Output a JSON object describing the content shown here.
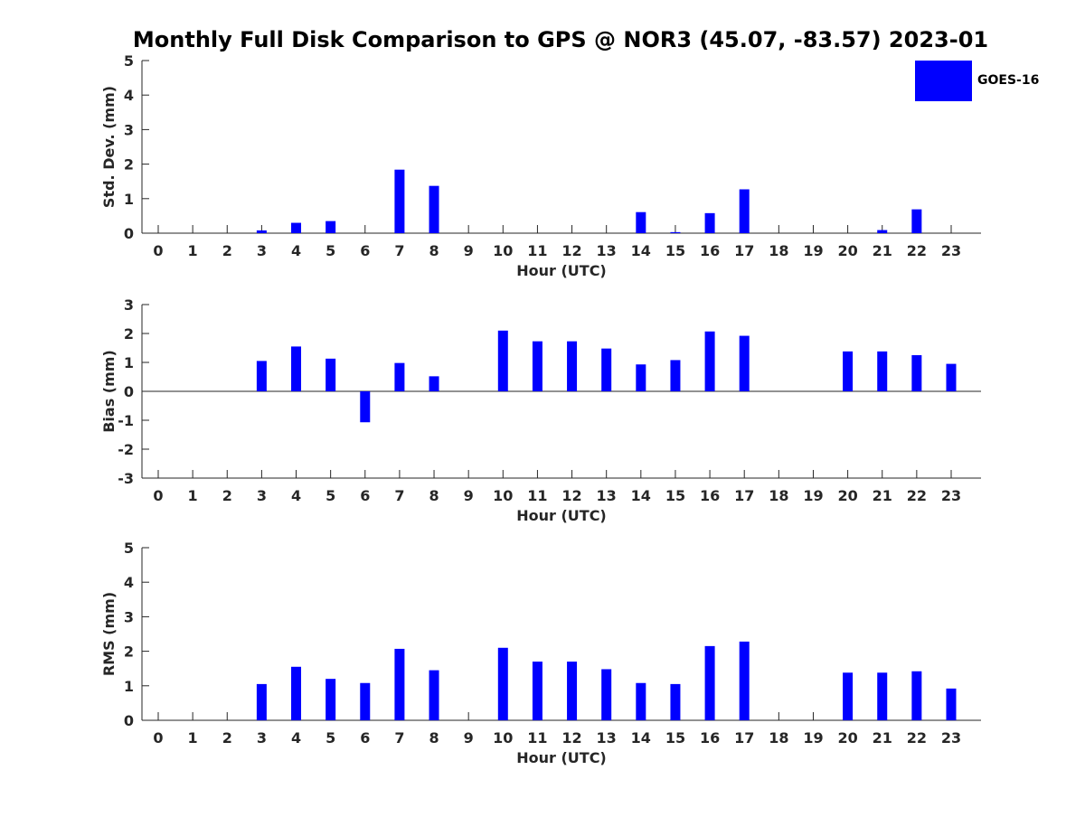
{
  "figure": {
    "title": "Monthly Full Disk Comparison to GPS @ NOR3 (45.07, -83.57) 2023-01",
    "bar_color": "#0000ff",
    "legend": {
      "label": "GOES-16",
      "placement": "top-right"
    }
  },
  "chart_data": [
    {
      "type": "bar",
      "title": "",
      "xlabel": "Hour (UTC)",
      "ylabel": "Std. Dev. (mm)",
      "ylim": [
        0,
        5
      ],
      "yticks": [
        0,
        1,
        2,
        3,
        4,
        5
      ],
      "categories": [
        "0",
        "1",
        "2",
        "3",
        "4",
        "5",
        "6",
        "7",
        "8",
        "9",
        "10",
        "11",
        "12",
        "13",
        "14",
        "15",
        "16",
        "17",
        "18",
        "19",
        "20",
        "21",
        "22",
        "23"
      ],
      "series": [
        {
          "name": "GOES-16",
          "values": [
            null,
            null,
            null,
            0.08,
            0.3,
            0.35,
            null,
            1.84,
            1.37,
            null,
            null,
            null,
            null,
            null,
            0.61,
            0.03,
            0.58,
            1.27,
            null,
            null,
            null,
            0.09,
            0.69,
            null
          ]
        }
      ],
      "grid": false
    },
    {
      "type": "bar",
      "title": "",
      "xlabel": "Hour (UTC)",
      "ylabel": "Bias (mm)",
      "ylim": [
        -3,
        3
      ],
      "yticks": [
        -3,
        -2,
        -1,
        0,
        1,
        2,
        3
      ],
      "zero_line": true,
      "categories": [
        "0",
        "1",
        "2",
        "3",
        "4",
        "5",
        "6",
        "7",
        "8",
        "9",
        "10",
        "11",
        "12",
        "13",
        "14",
        "15",
        "16",
        "17",
        "18",
        "19",
        "20",
        "21",
        "22",
        "23"
      ],
      "series": [
        {
          "name": "GOES-16",
          "values": [
            null,
            null,
            null,
            1.05,
            1.55,
            1.13,
            -1.07,
            0.98,
            0.52,
            null,
            2.1,
            1.73,
            1.73,
            1.48,
            0.93,
            1.08,
            2.07,
            1.92,
            null,
            null,
            1.38,
            1.38,
            1.25,
            0.95
          ]
        }
      ],
      "grid": false
    },
    {
      "type": "bar",
      "title": "",
      "xlabel": "Hour (UTC)",
      "ylabel": "RMS (mm)",
      "ylim": [
        0,
        5
      ],
      "yticks": [
        0,
        1,
        2,
        3,
        4,
        5
      ],
      "categories": [
        "0",
        "1",
        "2",
        "3",
        "4",
        "5",
        "6",
        "7",
        "8",
        "9",
        "10",
        "11",
        "12",
        "13",
        "14",
        "15",
        "16",
        "17",
        "18",
        "19",
        "20",
        "21",
        "22",
        "23"
      ],
      "series": [
        {
          "name": "GOES-16",
          "values": [
            null,
            null,
            null,
            1.05,
            1.55,
            1.2,
            1.08,
            2.07,
            1.45,
            null,
            2.1,
            1.7,
            1.7,
            1.48,
            1.08,
            1.05,
            2.15,
            2.28,
            null,
            null,
            1.38,
            1.38,
            1.42,
            0.92
          ]
        }
      ],
      "grid": false
    }
  ]
}
